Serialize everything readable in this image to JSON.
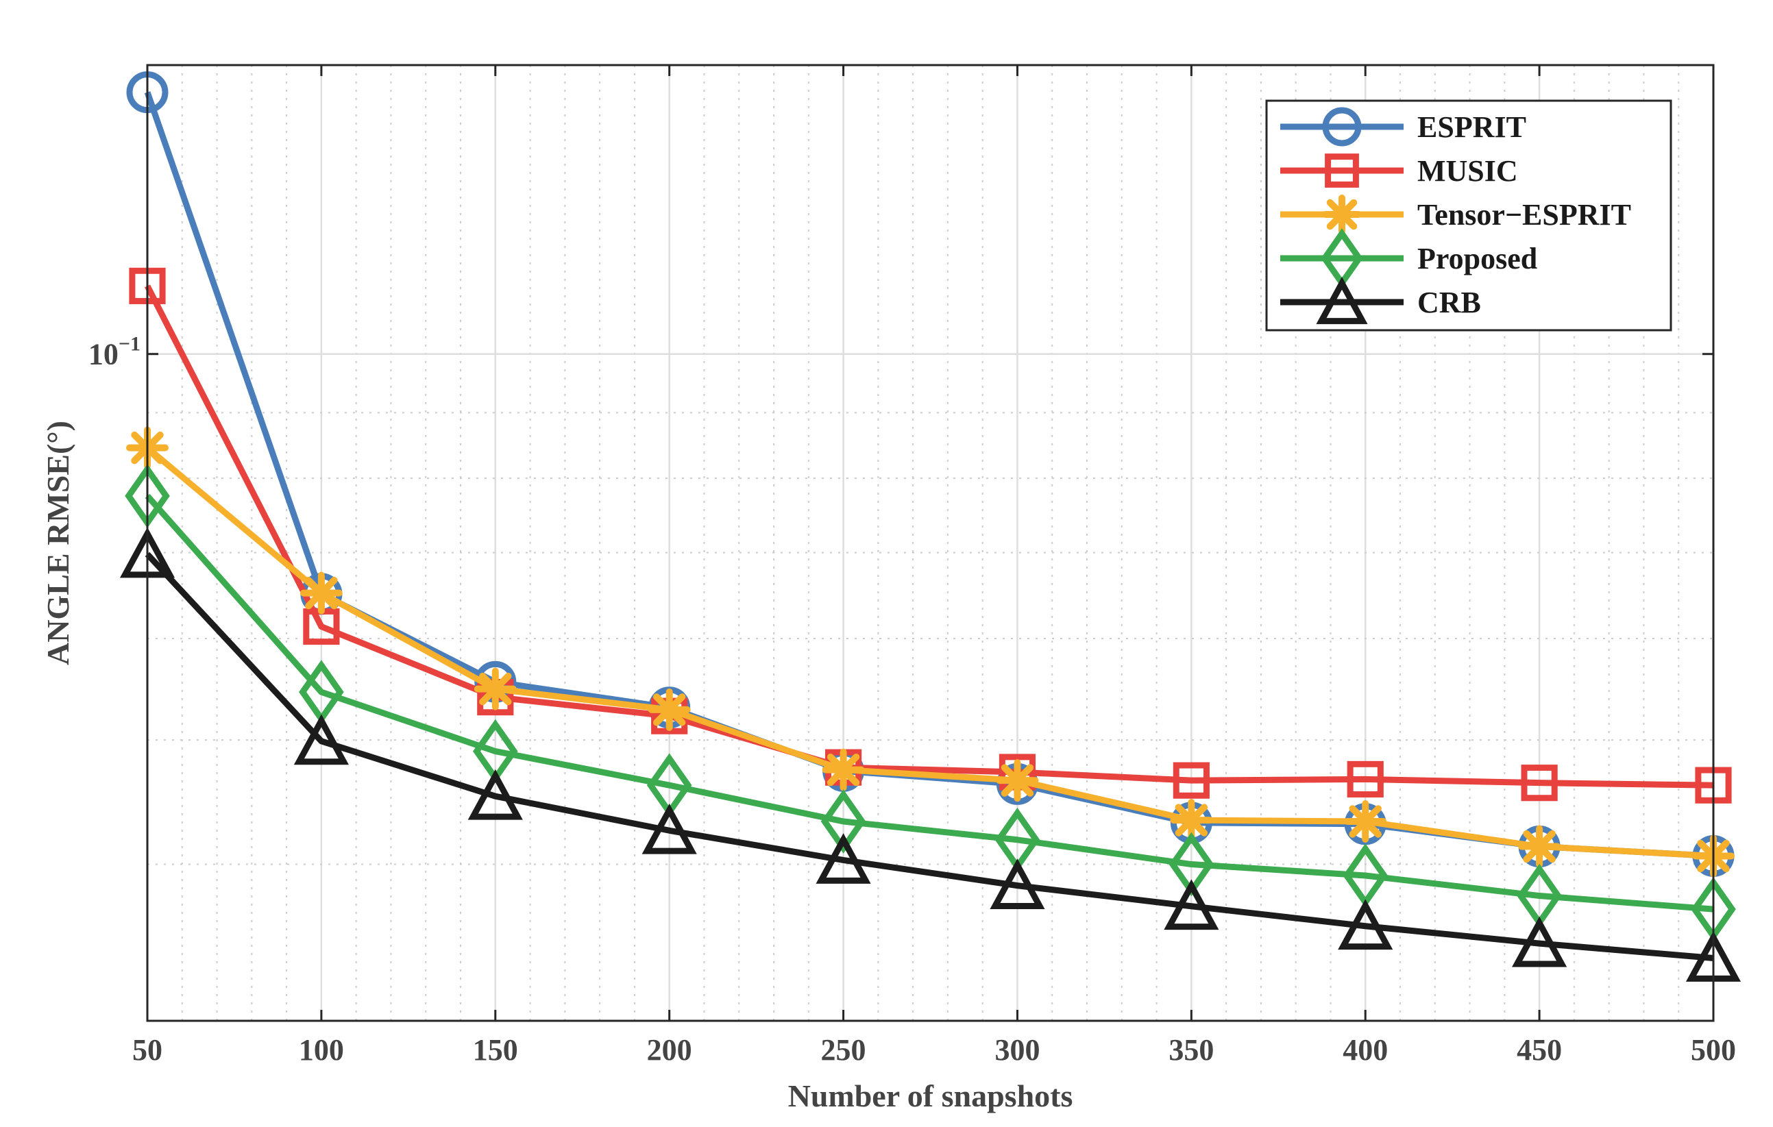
{
  "chart_data": {
    "type": "line",
    "title": "",
    "xlabel": "Number of snapshots",
    "ylabel": "ANGLE RMSE(°)",
    "y_scale": "log",
    "grid": true,
    "legend_position": "top-right",
    "xlim": [
      50,
      500
    ],
    "ylim": [
      0.0302,
      0.168
    ],
    "x": [
      50,
      100,
      150,
      200,
      250,
      300,
      350,
      400,
      450,
      500
    ],
    "xticks": [
      "50",
      "100",
      "150",
      "200",
      "250",
      "300",
      "350",
      "400",
      "450",
      "500"
    ],
    "ytick": {
      "value": 0.1,
      "base": "10",
      "exponent": "−1"
    },
    "series": [
      {
        "name": "ESPRIT",
        "color": "#4a7ebb",
        "marker": "circle",
        "values": [
          0.16,
          0.065,
          0.0555,
          0.053,
          0.0473,
          0.0462,
          0.0431,
          0.043,
          0.0413,
          0.0406
        ]
      },
      {
        "name": "MUSIC",
        "color": "#e8423f",
        "marker": "square",
        "values": [
          0.113,
          0.0613,
          0.054,
          0.0522,
          0.0476,
          0.0472,
          0.0465,
          0.0466,
          0.0463,
          0.0461
        ]
      },
      {
        "name": "Tensor−ESPRIT",
        "color": "#f6b02b",
        "marker": "asterisk",
        "values": [
          0.0845,
          0.0651,
          0.0548,
          0.0528,
          0.0474,
          0.0465,
          0.0433,
          0.0432,
          0.0413,
          0.0406
        ]
      },
      {
        "name": "Proposed",
        "color": "#3caa4f",
        "marker": "diamond",
        "values": [
          0.0775,
          0.0545,
          0.049,
          0.0461,
          0.0432,
          0.0418,
          0.04,
          0.0392,
          0.0378,
          0.0369
        ]
      },
      {
        "name": "CRB",
        "color": "#1c1c1c",
        "marker": "triangle",
        "values": [
          0.0698,
          0.0499,
          0.0452,
          0.0425,
          0.0403,
          0.0385,
          0.0371,
          0.0358,
          0.0347,
          0.0338
        ]
      }
    ]
  }
}
